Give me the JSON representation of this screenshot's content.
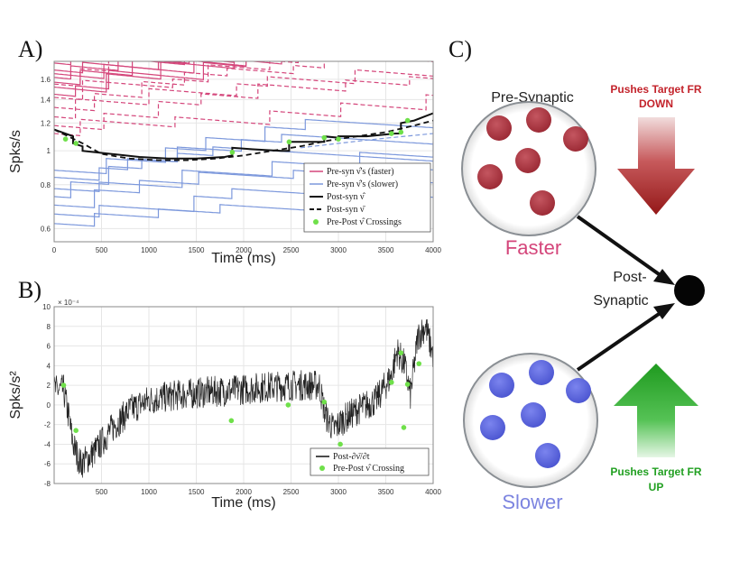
{
  "panels": {
    "a_label": "A)",
    "b_label": "B)",
    "c_label": "C)"
  },
  "colors": {
    "faster": "#d4457a",
    "slower": "#7c98dc",
    "post": "#111111",
    "crossing": "#6fe04a",
    "red_arrow": "#a01f22",
    "green_arrow": "#22a022",
    "red_neuron": "#a8323c",
    "blue_neuron": "#5560d8"
  },
  "chart_data": [
    {
      "id": "A",
      "type": "line",
      "xlabel": "Time (ms)",
      "ylabel": "Spks/s",
      "yscale": "log",
      "xlim": [
        0,
        4000
      ],
      "ylim": [
        0.55,
        1.8
      ],
      "xticks": [
        0,
        500,
        1000,
        1500,
        2000,
        2500,
        3000,
        3500,
        4000
      ],
      "yticks": [
        0.6,
        0.8,
        1,
        1.2,
        1.4,
        1.6
      ],
      "legend": {
        "position": "bottom-right",
        "entries": [
          "Pre-syn ν̂'s (faster)",
          "Pre-syn ν̂'s (slower)",
          "Post-syn ν̂",
          "Post-syn ν̄",
          "Pre-Post ν̂ Crossings"
        ]
      },
      "faster_solid_starts": [
        1.78,
        1.7,
        1.66,
        1.62,
        1.57,
        1.52,
        1.45
      ],
      "faster_dashed_starts": [
        1.55,
        1.42,
        1.33,
        1.25,
        1.18,
        1.12
      ],
      "slower_starts": [
        0.88,
        0.84,
        0.78,
        0.74,
        0.7,
        0.66,
        0.62
      ],
      "post_hat": {
        "x": [
          0,
          200,
          200,
          300,
          300,
          600,
          900,
          1200,
          1500,
          1800,
          1880,
          1880,
          2100,
          2400,
          2480,
          2480,
          2700,
          2850,
          2850,
          3000,
          3000,
          3300,
          3600,
          3660,
          3660,
          3800,
          4000
        ],
        "y": [
          1.15,
          1.1,
          1.05,
          1.03,
          1.0,
          0.98,
          0.96,
          0.95,
          0.95,
          0.96,
          0.97,
          1.02,
          1.01,
          1.0,
          1.0,
          1.06,
          1.06,
          1.06,
          1.1,
          1.09,
          1.1,
          1.1,
          1.12,
          1.12,
          1.2,
          1.22,
          1.28
        ]
      },
      "post_bar": {
        "x": [
          0,
          300,
          500,
          800,
          1100,
          1400,
          1700,
          2000,
          2300,
          2600,
          2900,
          3200,
          3500,
          3800,
          4000
        ],
        "y": [
          1.15,
          1.05,
          0.98,
          0.95,
          0.94,
          0.94,
          0.95,
          0.97,
          1.0,
          1.03,
          1.07,
          1.1,
          1.13,
          1.18,
          1.22
        ]
      },
      "crossings": {
        "x": [
          120,
          230,
          1880,
          2480,
          2850,
          3000,
          3560,
          3660,
          3730
        ],
        "y": [
          1.08,
          1.05,
          0.99,
          1.06,
          1.09,
          1.08,
          1.12,
          1.13,
          1.22
        ]
      }
    },
    {
      "id": "B",
      "type": "line",
      "xlabel": "Time (ms)",
      "ylabel": "Spks/s²",
      "exponent": "× 10⁻⁴",
      "xlim": [
        0,
        4000
      ],
      "ylim": [
        -8,
        10
      ],
      "xticks": [
        500,
        1000,
        1500,
        2000,
        2500,
        3000,
        3500,
        4000
      ],
      "yticks": [
        -8,
        -6,
        -4,
        -2,
        0,
        2,
        4,
        6,
        8,
        10
      ],
      "legend": {
        "position": "bottom-right",
        "entries": [
          "Post-∂ν̄/∂t",
          "Pre-Post ν̂ Crossing"
        ]
      },
      "envelope": {
        "x": [
          0,
          100,
          150,
          200,
          280,
          350,
          450,
          600,
          800,
          1000,
          1300,
          1600,
          1900,
          2200,
          2500,
          2800,
          2860,
          2950,
          3050,
          3200,
          3400,
          3560,
          3620,
          3700,
          3760,
          3840,
          3920,
          4000
        ],
        "y": [
          1.5,
          1.5,
          -1.0,
          -4.0,
          -6.0,
          -5.5,
          -4.5,
          -2.5,
          -0.5,
          0.5,
          1.0,
          1.3,
          1.5,
          1.8,
          2.0,
          2.0,
          -1.0,
          -2.5,
          -1.5,
          -0.5,
          0.5,
          3.0,
          5.5,
          4.0,
          1.0,
          7.0,
          8.0,
          5.0
        ]
      },
      "crossings": {
        "x": [
          100,
          230,
          1870,
          2470,
          2850,
          3020,
          3560,
          3660,
          3690,
          3730,
          3850
        ],
        "y": [
          2.0,
          -2.6,
          -1.6,
          0.0,
          0.3,
          -4.0,
          2.3,
          5.3,
          -2.3,
          2.1,
          4.2
        ]
      }
    }
  ],
  "diagram": {
    "pre_synaptic_label": "Pre-Synaptic",
    "faster_label": "Faster",
    "slower_label": "Slower",
    "post_synaptic_label_1": "Post-",
    "post_synaptic_label_2": "Synaptic",
    "pushes_down_1": "Pushes Target FR",
    "pushes_down_2": "DOWN",
    "pushes_up_1": "Pushes Target FR",
    "pushes_up_2": "UP"
  }
}
